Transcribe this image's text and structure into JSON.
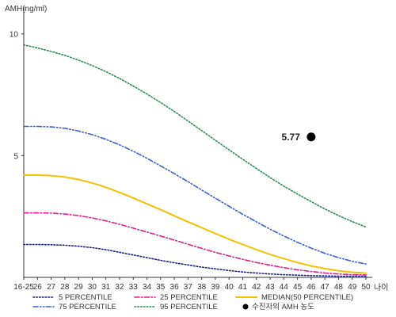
{
  "chart_data": {
    "type": "line",
    "ylabel": "AMH(ng/ml)",
    "xlabel": "나이",
    "ylim": [
      0,
      11
    ],
    "y_ticks": [
      5,
      10
    ],
    "categories": [
      "16-25",
      "26",
      "27",
      "28",
      "29",
      "30",
      "31",
      "32",
      "33",
      "34",
      "35",
      "36",
      "37",
      "38",
      "39",
      "40",
      "41",
      "42",
      "43",
      "44",
      "45",
      "46",
      "47",
      "48",
      "49",
      "50"
    ],
    "series": [
      {
        "name": "5 PERCENTILE",
        "color": "#1a237e",
        "dash": "dotted",
        "values": [
          1.35,
          1.35,
          1.34,
          1.32,
          1.28,
          1.22,
          1.14,
          1.03,
          0.92,
          0.81,
          0.7,
          0.6,
          0.51,
          0.42,
          0.35,
          0.28,
          0.22,
          0.18,
          0.14,
          0.11,
          0.09,
          0.07,
          0.06,
          0.05,
          0.05,
          0.05
        ]
      },
      {
        "name": "25 PERCENTILE",
        "color": "#e0208c",
        "dash": "dash-dot",
        "values": [
          2.65,
          2.65,
          2.64,
          2.6,
          2.54,
          2.44,
          2.32,
          2.18,
          2.02,
          1.86,
          1.7,
          1.53,
          1.36,
          1.19,
          1.03,
          0.88,
          0.74,
          0.61,
          0.5,
          0.4,
          0.31,
          0.24,
          0.18,
          0.14,
          0.11,
          0.1
        ]
      },
      {
        "name": "MEDIAN(50 PERCENTILE)",
        "color": "#f2c200",
        "dash": "solid",
        "values": [
          4.2,
          4.2,
          4.18,
          4.12,
          4.02,
          3.88,
          3.7,
          3.49,
          3.26,
          3.02,
          2.78,
          2.53,
          2.28,
          2.04,
          1.8,
          1.57,
          1.35,
          1.14,
          0.94,
          0.77,
          0.61,
          0.47,
          0.36,
          0.27,
          0.21,
          0.18
        ]
      },
      {
        "name": "75 PERCENTILE",
        "color": "#3a5fcd",
        "dash": "dash-dot-dot",
        "values": [
          6.2,
          6.2,
          6.18,
          6.12,
          6.01,
          5.86,
          5.67,
          5.44,
          5.18,
          4.89,
          4.58,
          4.26,
          3.93,
          3.59,
          3.25,
          2.92,
          2.59,
          2.28,
          1.98,
          1.7,
          1.44,
          1.2,
          0.99,
          0.81,
          0.66,
          0.55
        ]
      },
      {
        "name": "95 PERCENTILE",
        "color": "#2e8b57",
        "dash": "dotted",
        "values": [
          9.55,
          9.42,
          9.28,
          9.12,
          8.92,
          8.7,
          8.45,
          8.17,
          7.86,
          7.53,
          7.18,
          6.81,
          6.42,
          6.03,
          5.63,
          5.24,
          4.85,
          4.47,
          4.1,
          3.75,
          3.42,
          3.11,
          2.81,
          2.54,
          2.29,
          2.07
        ]
      }
    ],
    "marker": {
      "label": "수진자의 AMH 농도",
      "x": "46",
      "y": 5.77,
      "value_text": "5.77"
    },
    "legend_placement": "bottom",
    "grid": false
  }
}
